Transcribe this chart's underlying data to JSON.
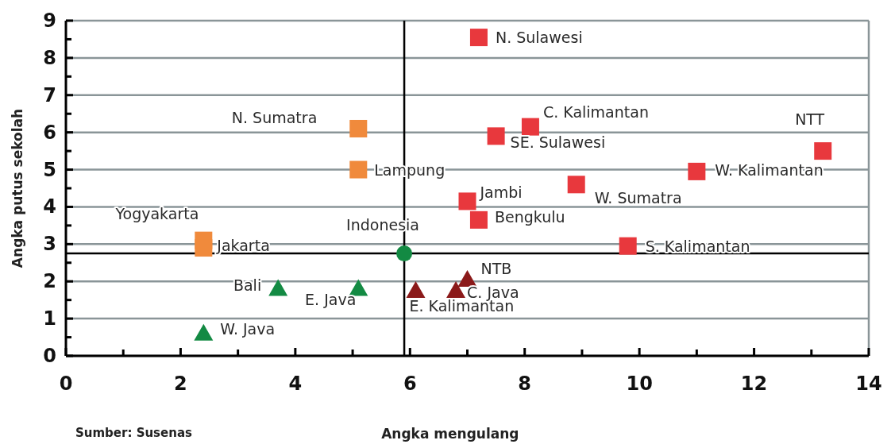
{
  "chart_data": {
    "type": "scatter",
    "xlabel": "Angka mengulang",
    "ylabel": "Angka putus sekolah",
    "xlim": [
      0,
      14
    ],
    "ylim": [
      0,
      9
    ],
    "xticks": [
      0,
      {
        "value": 1,
        "label": null
      },
      2,
      {
        "value": 3,
        "label": null
      },
      4,
      {
        "value": 5,
        "label": null
      },
      6,
      {
        "value": 7,
        "label": null
      },
      8,
      {
        "value": 9,
        "label": null
      },
      10,
      {
        "value": 11,
        "label": null
      },
      12,
      {
        "value": 13,
        "label": null
      },
      14
    ],
    "yticks": [
      0,
      {
        "value": 0.5,
        "label": null
      },
      1,
      {
        "value": 1.5,
        "label": null
      },
      2,
      {
        "value": 2.5,
        "label": null
      },
      3,
      {
        "value": 3.5,
        "label": null
      },
      4,
      {
        "value": 4.5,
        "label": null
      },
      5,
      {
        "value": 5.5,
        "label": null
      },
      6,
      {
        "value": 6.5,
        "label": null
      },
      7,
      {
        "value": 7.5,
        "label": null
      },
      8,
      {
        "value": 8.5,
        "label": null
      },
      9
    ],
    "grid": "y",
    "series": [
      {
        "color": "#f08a3c",
        "marker": "square",
        "x": [
          5.1,
          5.1,
          2.4,
          2.4
        ],
        "values": [
          6.1,
          5.0,
          3.1,
          2.9
        ]
      },
      {
        "color": "#e8383d",
        "marker": "square",
        "x": [
          7.2,
          8.1,
          7.5,
          13.2,
          11.0,
          8.9,
          7.0,
          7.2,
          9.8
        ],
        "values": [
          8.55,
          6.15,
          5.9,
          5.5,
          4.95,
          4.6,
          4.15,
          3.65,
          2.95
        ]
      },
      {
        "color": "#138a43",
        "marker": "triangle",
        "x": [
          3.7,
          5.1,
          2.4
        ],
        "values": [
          1.8,
          1.8,
          0.6
        ]
      },
      {
        "color": "#8b1a1a",
        "marker": "triangle",
        "x": [
          6.1,
          6.8,
          7.0
        ],
        "values": [
          1.75,
          1.75,
          2.05
        ]
      },
      {
        "color": "#138a43",
        "marker": "circle",
        "x": [
          5.9
        ],
        "values": [
          2.75
        ]
      }
    ],
    "ref_lines": [
      {
        "axis": "x",
        "value": 5.9,
        "color": "#000000"
      },
      {
        "axis": "y",
        "value": 2.75,
        "color": "#000000"
      }
    ],
    "annotations": [
      {
        "text": "N. Sumatra",
        "x": 5.1,
        "y": 6.1
      },
      {
        "text": "Lampung",
        "x": 5.1,
        "y": 5.0
      },
      {
        "text": "Yogyakarta",
        "x": 2.4,
        "y": 3.1
      },
      {
        "text": "Jakarta",
        "x": 2.4,
        "y": 2.9
      },
      {
        "text": "N. Sulawesi",
        "x": 7.2,
        "y": 8.55
      },
      {
        "text": "C. Kalimantan",
        "x": 8.1,
        "y": 6.15
      },
      {
        "text": "SE. Sulawesi",
        "x": 7.5,
        "y": 5.9
      },
      {
        "text": "NTT",
        "x": 13.2,
        "y": 5.5
      },
      {
        "text": "W. Kalimantan",
        "x": 11.0,
        "y": 4.95
      },
      {
        "text": "W. Sumatra",
        "x": 8.9,
        "y": 4.6
      },
      {
        "text": "Jambi",
        "x": 7.0,
        "y": 4.15
      },
      {
        "text": "Bengkulu",
        "x": 7.2,
        "y": 3.65
      },
      {
        "text": "S. Kalimantan",
        "x": 9.8,
        "y": 2.95
      },
      {
        "text": "Bali",
        "x": 3.7,
        "y": 1.8
      },
      {
        "text": "E. Java",
        "x": 5.1,
        "y": 1.8
      },
      {
        "text": "W. Java",
        "x": 2.4,
        "y": 0.6
      },
      {
        "text": "E. Kalimantan",
        "x": 6.1,
        "y": 1.75
      },
      {
        "text": "C. Java",
        "x": 6.8,
        "y": 1.75
      },
      {
        "text": "NTB",
        "x": 7.0,
        "y": 2.05
      },
      {
        "text": "Indonesia",
        "x": 5.9,
        "y": 2.75
      },
      "Sumber: Susenas"
    ]
  }
}
